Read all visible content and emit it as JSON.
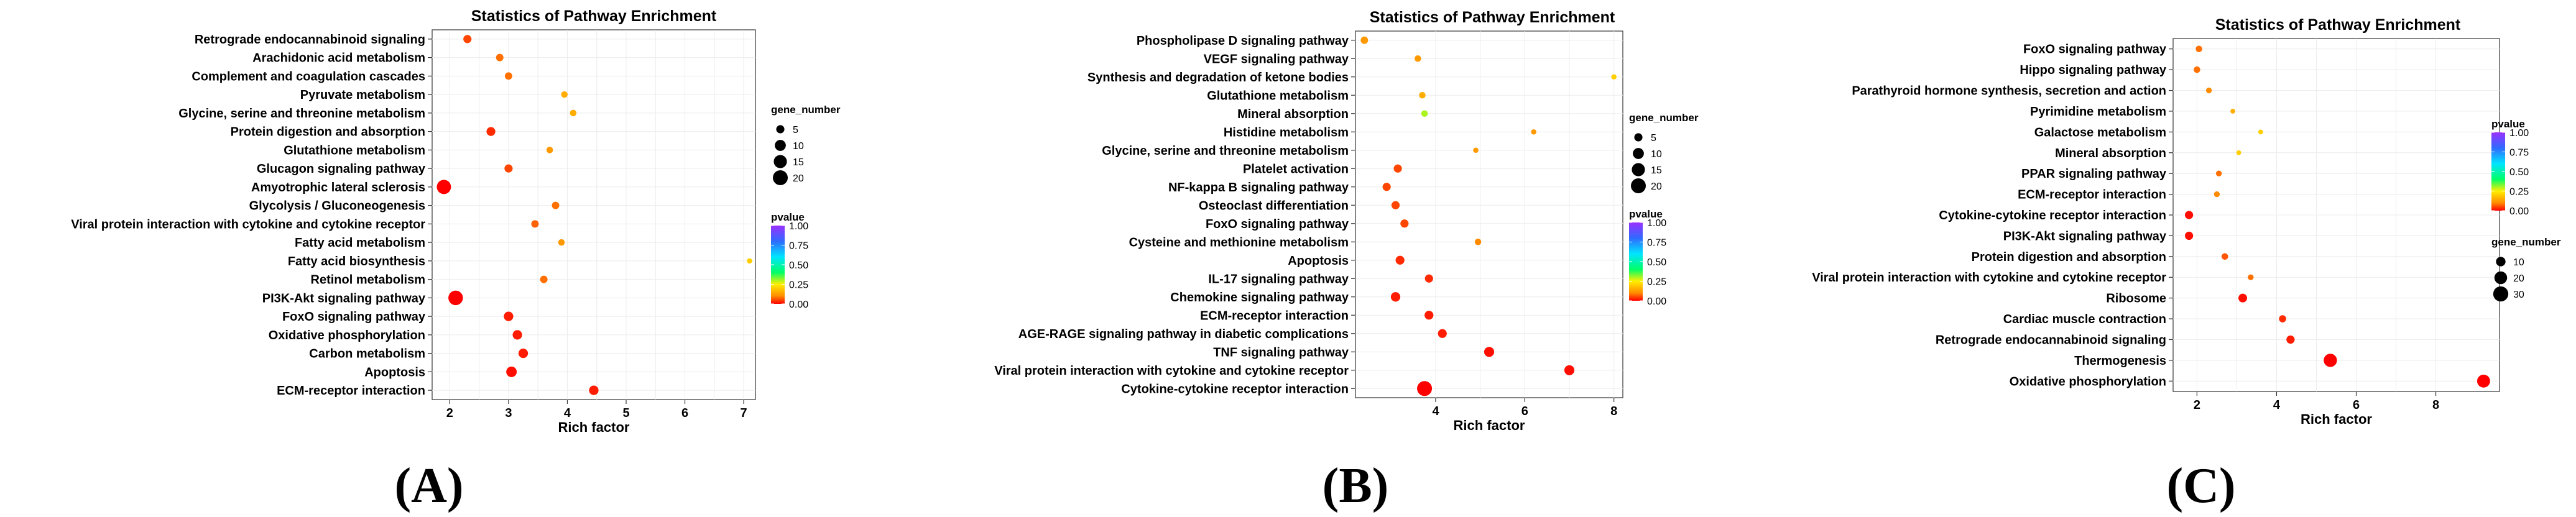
{
  "chart_data": [
    {
      "type": "scatter",
      "panel": "(A)",
      "title": "Statistics of Pathway Enrichment",
      "xlabel": "Rich factor",
      "xlim": [
        1.7,
        7.2
      ],
      "xticks": [
        "2",
        "3",
        "4",
        "5",
        "6",
        "7"
      ],
      "color_legend": {
        "title": "pvalue",
        "ticks": [
          "1.00",
          "0.75",
          "0.50",
          "0.25",
          "0.00"
        ]
      },
      "size_legend": {
        "title": "gene_number",
        "ticks": [
          "5",
          "10",
          "15",
          "20"
        ]
      },
      "color_range": [
        0,
        1
      ],
      "size_range": [
        2,
        22
      ],
      "points": [
        {
          "pathway": "Retrograde endocannabinoid signaling",
          "rich_factor": 2.3,
          "gene_number": 5,
          "pvalue": 0.05
        },
        {
          "pathway": "Arachidonic acid metabolism",
          "rich_factor": 2.85,
          "gene_number": 4,
          "pvalue": 0.08
        },
        {
          "pathway": "Complement and coagulation cascades",
          "rich_factor": 3.0,
          "gene_number": 4,
          "pvalue": 0.08
        },
        {
          "pathway": "Pyruvate metabolism",
          "rich_factor": 3.95,
          "gene_number": 3,
          "pvalue": 0.15
        },
        {
          "pathway": "Glycine, serine and threonine metabolism",
          "rich_factor": 4.1,
          "gene_number": 3,
          "pvalue": 0.15
        },
        {
          "pathway": "Protein digestion and absorption",
          "rich_factor": 2.7,
          "gene_number": 6,
          "pvalue": 0.03
        },
        {
          "pathway": "Glutathione metabolism",
          "rich_factor": 3.7,
          "gene_number": 3,
          "pvalue": 0.12
        },
        {
          "pathway": "Glucagon signaling pathway",
          "rich_factor": 3.0,
          "gene_number": 5,
          "pvalue": 0.05
        },
        {
          "pathway": "Amyotrophic lateral sclerosis",
          "rich_factor": 1.9,
          "gene_number": 18,
          "pvalue": 0.0
        },
        {
          "pathway": "Glycolysis / Gluconeogenesis",
          "rich_factor": 3.8,
          "gene_number": 4,
          "pvalue": 0.08
        },
        {
          "pathway": "Viral protein interaction with cytokine and cytokine receptor",
          "rich_factor": 3.45,
          "gene_number": 4,
          "pvalue": 0.07
        },
        {
          "pathway": "Fatty acid metabolism",
          "rich_factor": 3.9,
          "gene_number": 3,
          "pvalue": 0.12
        },
        {
          "pathway": "Fatty acid biosynthesis",
          "rich_factor": 7.1,
          "gene_number": 2,
          "pvalue": 0.2
        },
        {
          "pathway": "Retinol metabolism",
          "rich_factor": 3.6,
          "gene_number": 4,
          "pvalue": 0.08
        },
        {
          "pathway": "PI3K-Akt signaling pathway",
          "rich_factor": 2.1,
          "gene_number": 19,
          "pvalue": 0.0
        },
        {
          "pathway": "FoxO signaling pathway",
          "rich_factor": 3.0,
          "gene_number": 7,
          "pvalue": 0.02
        },
        {
          "pathway": "Oxidative phosphorylation",
          "rich_factor": 3.15,
          "gene_number": 7,
          "pvalue": 0.02
        },
        {
          "pathway": "Carbon metabolism",
          "rich_factor": 3.25,
          "gene_number": 7,
          "pvalue": 0.02
        },
        {
          "pathway": "Apoptosis",
          "rich_factor": 3.05,
          "gene_number": 9,
          "pvalue": 0.01
        },
        {
          "pathway": "ECM-receptor interaction",
          "rich_factor": 4.45,
          "gene_number": 7,
          "pvalue": 0.02
        }
      ]
    },
    {
      "type": "scatter",
      "panel": "(B)",
      "title": "Statistics of Pathway Enrichment",
      "xlabel": "Rich factor",
      "xlim": [
        2.2,
        8.2
      ],
      "xticks": [
        "4",
        "6",
        "8"
      ],
      "color_legend": {
        "title": "pvalue",
        "ticks": [
          "1.00",
          "0.75",
          "0.50",
          "0.25",
          "0.00"
        ]
      },
      "size_legend": {
        "title": "gene_number",
        "ticks": [
          "5",
          "10",
          "15",
          "20"
        ]
      },
      "color_range": [
        0,
        1
      ],
      "size_range": [
        2,
        22
      ],
      "points": [
        {
          "pathway": "Phospholipase D signaling pathway",
          "rich_factor": 2.4,
          "gene_number": 4,
          "pvalue": 0.12
        },
        {
          "pathway": "VEGF signaling pathway",
          "rich_factor": 3.6,
          "gene_number": 3,
          "pvalue": 0.12
        },
        {
          "pathway": "Synthesis and degradation of ketone bodies",
          "rich_factor": 8.0,
          "gene_number": 2,
          "pvalue": 0.2
        },
        {
          "pathway": "Glutathione metabolism",
          "rich_factor": 3.7,
          "gene_number": 3,
          "pvalue": 0.15
        },
        {
          "pathway": "Mineral absorption",
          "rich_factor": 3.75,
          "gene_number": 3,
          "pvalue": 0.3
        },
        {
          "pathway": "Histidine metabolism",
          "rich_factor": 6.2,
          "gene_number": 2,
          "pvalue": 0.12
        },
        {
          "pathway": "Glycine, serine and threonine metabolism",
          "rich_factor": 4.9,
          "gene_number": 2,
          "pvalue": 0.12
        },
        {
          "pathway": "Platelet activation",
          "rich_factor": 3.15,
          "gene_number": 5,
          "pvalue": 0.05
        },
        {
          "pathway": "NF-kappa B signaling pathway",
          "rich_factor": 2.9,
          "gene_number": 5,
          "pvalue": 0.05
        },
        {
          "pathway": "Osteoclast differentiation",
          "rich_factor": 3.1,
          "gene_number": 5,
          "pvalue": 0.05
        },
        {
          "pathway": "FoxO signaling pathway",
          "rich_factor": 3.3,
          "gene_number": 5,
          "pvalue": 0.05
        },
        {
          "pathway": "Cysteine and methionine metabolism",
          "rich_factor": 4.95,
          "gene_number": 3,
          "pvalue": 0.1
        },
        {
          "pathway": "Apoptosis",
          "rich_factor": 3.2,
          "gene_number": 6,
          "pvalue": 0.03
        },
        {
          "pathway": "IL-17 signaling pathway",
          "rich_factor": 3.85,
          "gene_number": 5,
          "pvalue": 0.03
        },
        {
          "pathway": "Chemokine signaling pathway",
          "rich_factor": 3.1,
          "gene_number": 7,
          "pvalue": 0.02
        },
        {
          "pathway": "ECM-receptor interaction",
          "rich_factor": 3.85,
          "gene_number": 6,
          "pvalue": 0.02
        },
        {
          "pathway": "AGE-RAGE signaling pathway in diabetic complications",
          "rich_factor": 4.15,
          "gene_number": 6,
          "pvalue": 0.02
        },
        {
          "pathway": "TNF signaling pathway",
          "rich_factor": 5.2,
          "gene_number": 8,
          "pvalue": 0.01
        },
        {
          "pathway": "Viral protein interaction with cytokine and cytokine receptor",
          "rich_factor": 7.0,
          "gene_number": 8,
          "pvalue": 0.01
        },
        {
          "pathway": "Cytokine-cytokine receptor interaction",
          "rich_factor": 3.75,
          "gene_number": 20,
          "pvalue": 0.0
        }
      ]
    },
    {
      "type": "scatter",
      "panel": "(C)",
      "title": "Statistics of Pathway Enrichment",
      "xlabel": "Rich factor",
      "xlim": [
        1.4,
        9.6
      ],
      "xticks": [
        "2",
        "4",
        "6",
        "8"
      ],
      "color_legend": {
        "title": "pvalue",
        "ticks": [
          "1.00",
          "0.75",
          "0.50",
          "0.25",
          "0.00"
        ]
      },
      "size_legend": {
        "title": "gene_number",
        "ticks": [
          "10",
          "20",
          "30"
        ]
      },
      "color_range": [
        0,
        1
      ],
      "size_range": [
        2,
        32
      ],
      "points": [
        {
          "pathway": "FoxO signaling pathway",
          "rich_factor": 2.05,
          "gene_number": 4,
          "pvalue": 0.08
        },
        {
          "pathway": "Hippo signaling pathway",
          "rich_factor": 2.0,
          "gene_number": 4,
          "pvalue": 0.08
        },
        {
          "pathway": "Parathyroid hormone synthesis, secretion and action",
          "rich_factor": 2.3,
          "gene_number": 3,
          "pvalue": 0.1
        },
        {
          "pathway": "Pyrimidine metabolism",
          "rich_factor": 2.9,
          "gene_number": 2,
          "pvalue": 0.15
        },
        {
          "pathway": "Galactose metabolism",
          "rich_factor": 3.6,
          "gene_number": 2,
          "pvalue": 0.2
        },
        {
          "pathway": "Mineral absorption",
          "rich_factor": 3.05,
          "gene_number": 2,
          "pvalue": 0.2
        },
        {
          "pathway": "PPAR signaling pathway",
          "rich_factor": 2.55,
          "gene_number": 3,
          "pvalue": 0.08
        },
        {
          "pathway": "ECM-receptor interaction",
          "rich_factor": 2.5,
          "gene_number": 3,
          "pvalue": 0.1
        },
        {
          "pathway": "Cytokine-cytokine receptor interaction",
          "rich_factor": 1.8,
          "gene_number": 7,
          "pvalue": 0.01
        },
        {
          "pathway": "PI3K-Akt signaling pathway",
          "rich_factor": 1.8,
          "gene_number": 7,
          "pvalue": 0.01
        },
        {
          "pathway": "Protein digestion and absorption",
          "rich_factor": 2.7,
          "gene_number": 4,
          "pvalue": 0.06
        },
        {
          "pathway": "Viral protein interaction with cytokine and cytokine receptor",
          "rich_factor": 3.35,
          "gene_number": 3,
          "pvalue": 0.08
        },
        {
          "pathway": "Ribosome",
          "rich_factor": 3.15,
          "gene_number": 8,
          "pvalue": 0.01
        },
        {
          "pathway": "Cardiac muscle contraction",
          "rich_factor": 4.15,
          "gene_number": 5,
          "pvalue": 0.03
        },
        {
          "pathway": "Retrograde endocannabinoid signaling",
          "rich_factor": 4.35,
          "gene_number": 7,
          "pvalue": 0.02
        },
        {
          "pathway": "Thermogenesis",
          "rich_factor": 5.35,
          "gene_number": 22,
          "pvalue": 0.0
        },
        {
          "pathway": "Oxidative phosphorylation",
          "rich_factor": 9.2,
          "gene_number": 21,
          "pvalue": 0.0
        }
      ]
    }
  ]
}
